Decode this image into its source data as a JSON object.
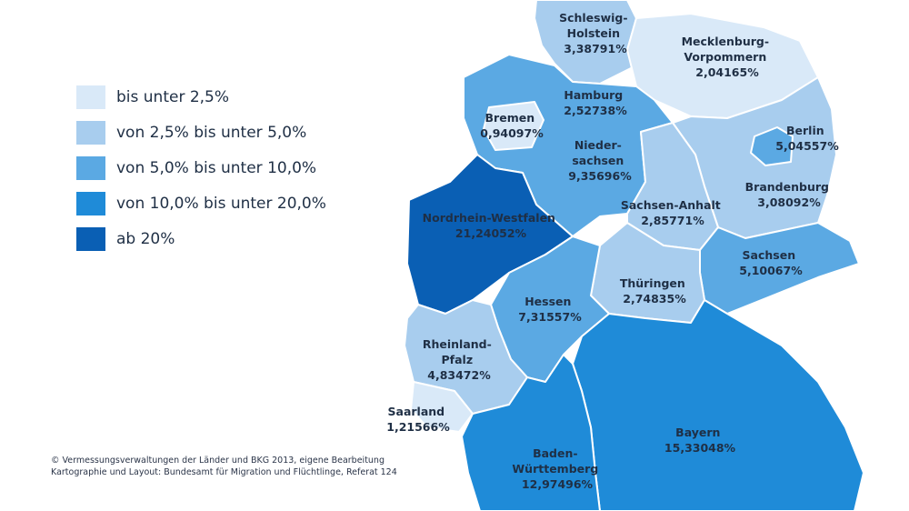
{
  "colors": {
    "c1": "#d9e9f8",
    "c2": "#a8cdee",
    "c3": "#5ba9e3",
    "c4": "#1f8bd8",
    "c5": "#0a5fb4"
  },
  "legend": [
    {
      "label": "bis unter 2,5%",
      "class": "c1"
    },
    {
      "label": "von 2,5% bis unter 5,0%",
      "class": "c2"
    },
    {
      "label": "von 5,0% bis unter 10,0%",
      "class": "c3"
    },
    {
      "label": "von 10,0% bis unter 20,0%",
      "class": "c4"
    },
    {
      "label": "ab 20%",
      "class": "c5"
    }
  ],
  "states": [
    {
      "id": "sh",
      "name": "Schleswig-Holstein",
      "name_lines": [
        "Schleswig-",
        "Holstein"
      ],
      "value": "3,38791%",
      "class": "c2"
    },
    {
      "id": "mv",
      "name": "Mecklenburg-Vorpommern",
      "name_lines": [
        "Mecklenburg-",
        "Vorpommern"
      ],
      "value": "2,04165%",
      "class": "c1"
    },
    {
      "id": "hh",
      "name": "Hamburg",
      "name_lines": [
        "Hamburg"
      ],
      "value": "2,52738%",
      "class": "c2"
    },
    {
      "id": "hb",
      "name": "Bremen",
      "name_lines": [
        "Bremen"
      ],
      "value": "0,94097%",
      "class": "c1"
    },
    {
      "id": "ni",
      "name": "Niedersachsen",
      "name_lines": [
        "Nieder-",
        "sachsen"
      ],
      "value": "9,35696%",
      "class": "c3"
    },
    {
      "id": "be",
      "name": "Berlin",
      "name_lines": [
        "Berlin"
      ],
      "value": "5,04557%",
      "class": "c3"
    },
    {
      "id": "bb",
      "name": "Brandenburg",
      "name_lines": [
        "Brandenburg"
      ],
      "value": "3,08092%",
      "class": "c2"
    },
    {
      "id": "st",
      "name": "Sachsen-Anhalt",
      "name_lines": [
        "Sachsen-Anhalt"
      ],
      "value": "2,85771%",
      "class": "c2"
    },
    {
      "id": "nw",
      "name": "Nordrhein-Westfalen",
      "name_lines": [
        "Nordrhein-Westfalen"
      ],
      "value": "21,24052%",
      "class": "c5"
    },
    {
      "id": "sn",
      "name": "Sachsen",
      "name_lines": [
        "Sachsen"
      ],
      "value": "5,10067%",
      "class": "c3"
    },
    {
      "id": "th",
      "name": "Thüringen",
      "name_lines": [
        "Thüringen"
      ],
      "value": "2,74835%",
      "class": "c2"
    },
    {
      "id": "he",
      "name": "Hessen",
      "name_lines": [
        "Hessen"
      ],
      "value": "7,31557%",
      "class": "c3"
    },
    {
      "id": "rp",
      "name": "Rheinland-Pfalz",
      "name_lines": [
        "Rheinland-",
        "Pfalz"
      ],
      "value": "4,83472%",
      "class": "c2"
    },
    {
      "id": "sl",
      "name": "Saarland",
      "name_lines": [
        "Saarland"
      ],
      "value": "1,21566%",
      "class": "c1"
    },
    {
      "id": "by",
      "name": "Bayern",
      "name_lines": [
        "Bayern"
      ],
      "value": "15,33048%",
      "class": "c4"
    },
    {
      "id": "bw",
      "name": "Baden-Württemberg",
      "name_lines": [
        "Baden-",
        "Württemberg"
      ],
      "value": "12,97496%",
      "class": "c4"
    }
  ],
  "credits": [
    "© Vermessungsverwaltungen der Länder und BKG 2013, eigene Bearbeitung",
    "Kartographie und Layout: Bundesamt für Migration und Flüchtlinge, Referat 124"
  ]
}
